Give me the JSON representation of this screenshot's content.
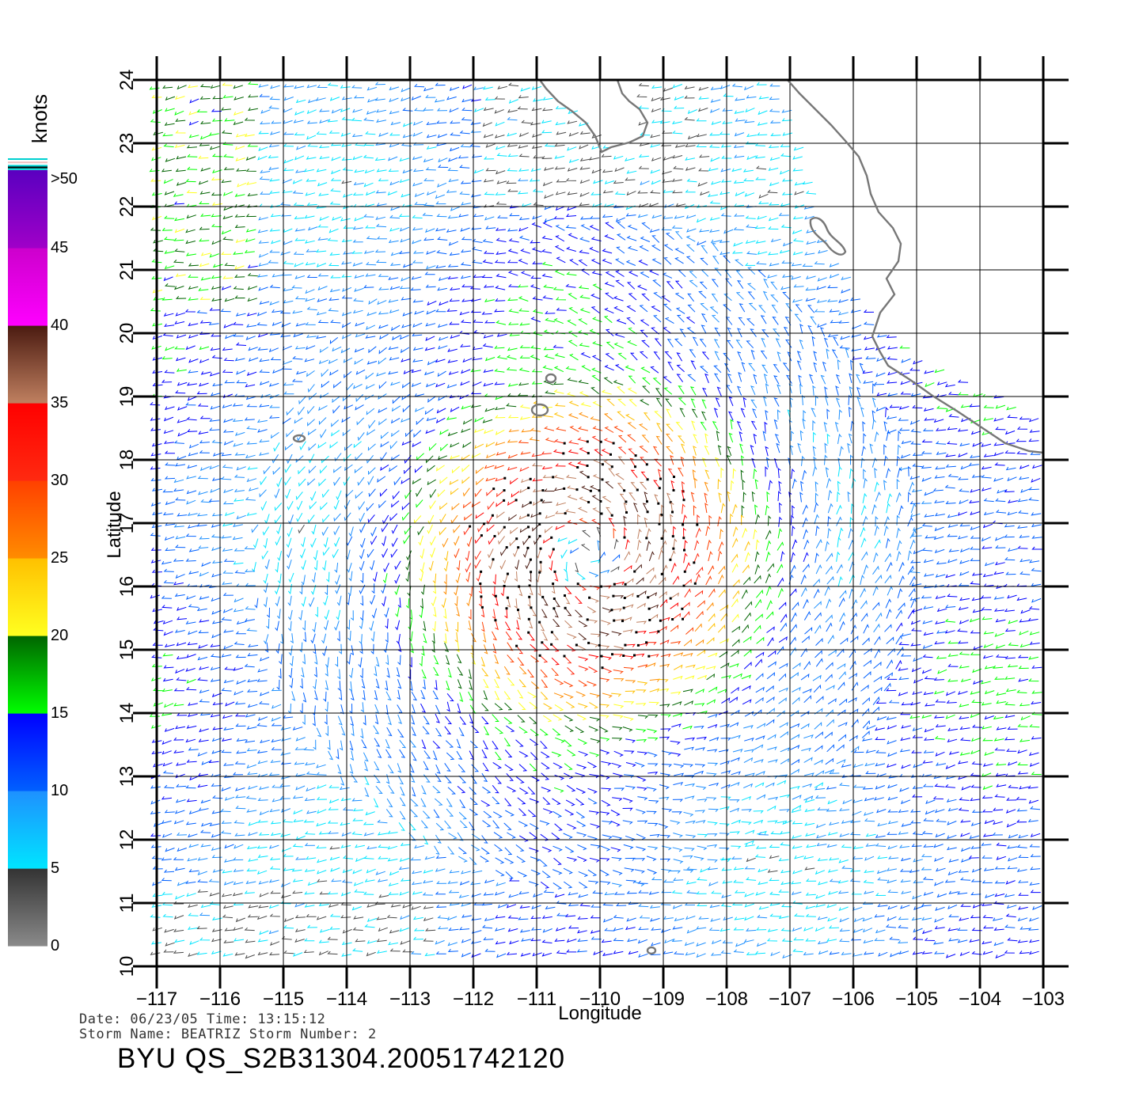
{
  "map": {
    "lon_range": [
      -117,
      -103
    ],
    "lat_range": [
      10,
      24
    ],
    "lon_ticks": [
      "-117",
      "-116",
      "-115",
      "-114",
      "-113",
      "-112",
      "-111",
      "-110",
      "-109",
      "-108",
      "-107",
      "-106",
      "-105",
      "-104",
      "-103"
    ],
    "lat_ticks": [
      "10",
      "11",
      "12",
      "13",
      "14",
      "15",
      "16",
      "17",
      "18",
      "19",
      "20",
      "21",
      "22",
      "23",
      "24"
    ],
    "xlabel": "Longitude",
    "ylabel": "Latitude",
    "grid": true,
    "coastline_color": "#777777",
    "storm_center": {
      "lon": -110.2,
      "lat": 16.5
    }
  },
  "legend": {
    "unit": "knots",
    "labels": [
      ">50",
      "45",
      "40",
      "35",
      "30",
      "25",
      "20",
      "15",
      "10",
      "5",
      "0"
    ],
    "bins": [
      {
        "range": [
          0,
          5
        ],
        "top": "#333333",
        "bottom": "#8a8a8a"
      },
      {
        "range": [
          5,
          10
        ],
        "top": "#1e90ff",
        "bottom": "#00e5ff"
      },
      {
        "range": [
          10,
          15
        ],
        "top": "#0000ff",
        "bottom": "#0060ff"
      },
      {
        "range": [
          15,
          20
        ],
        "top": "#006400",
        "bottom": "#00ff00"
      },
      {
        "range": [
          20,
          25
        ],
        "top": "#ffc000",
        "bottom": "#ffff20"
      },
      {
        "range": [
          25,
          30
        ],
        "top": "#ff4000",
        "bottom": "#ff8c00"
      },
      {
        "range": [
          30,
          35
        ],
        "top": "#ff0000",
        "bottom": "#ff2a10"
      },
      {
        "range": [
          35,
          40
        ],
        "top": "#4a1a10",
        "bottom": "#c08060"
      },
      {
        "range": [
          40,
          45
        ],
        "top": "#cc00cc",
        "bottom": "#ff00ff"
      },
      {
        "range": [
          45,
          50
        ],
        "top": "#5a00c0",
        "bottom": "#a000c8"
      }
    ],
    "cap_colors": [
      "#00d0d0",
      "#ffffff",
      "#f0c0c0",
      "#ffffff",
      "#00d0d0",
      "#000000",
      "#00d0d0"
    ]
  },
  "footer": {
    "date_line": "Date: 06/23/05   Time: 13:15:12",
    "storm_line": "Storm  Name:  BEATRIZ    Storm  Number:  2",
    "file_line": "BYU  QS_S2B31304.20051742120"
  }
}
